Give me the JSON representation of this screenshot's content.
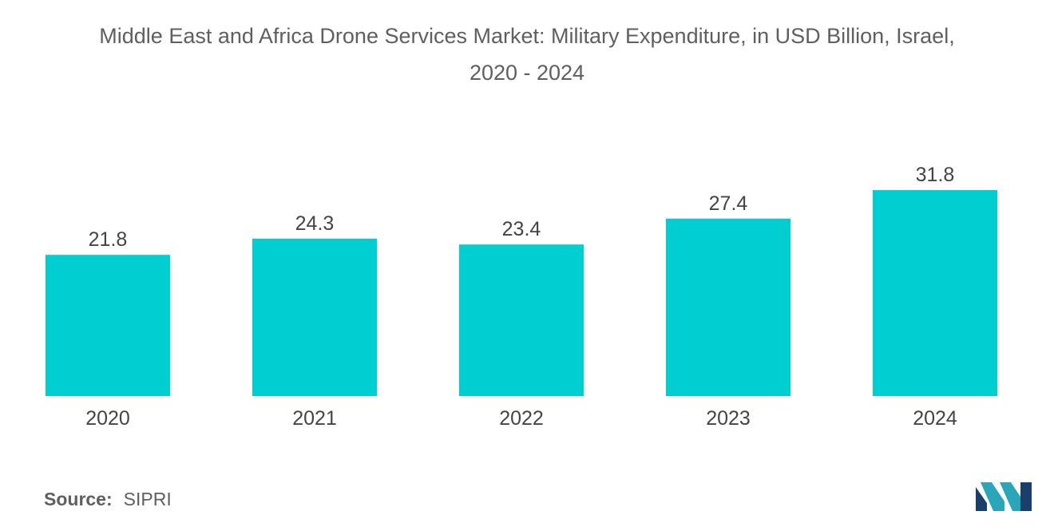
{
  "title": {
    "line1": "Middle East and Africa Drone Services Market: Military Expenditure, in USD Billion, Israel,",
    "line2": "2020 - 2024"
  },
  "chart_data": {
    "type": "bar",
    "title": "Middle East and Africa Drone Services Market: Military Expenditure, in USD Billion, Israel, 2020 - 2024",
    "categories": [
      "2020",
      "2021",
      "2022",
      "2023",
      "2024"
    ],
    "values": [
      21.8,
      24.3,
      23.4,
      27.4,
      31.8
    ],
    "value_labels": [
      "21.8",
      "24.3",
      "23.4",
      "27.4",
      "31.8"
    ],
    "xlabel": "",
    "ylabel": "",
    "ylim": [
      0,
      45
    ],
    "grid": false,
    "bar_color": "#00ced1"
  },
  "source": {
    "label": "Source:",
    "value": "SIPRI"
  },
  "logo": {
    "icon": "mordor-intelligence-logo-icon",
    "colors": [
      "#1b3f6b",
      "#2aa6b8"
    ]
  }
}
